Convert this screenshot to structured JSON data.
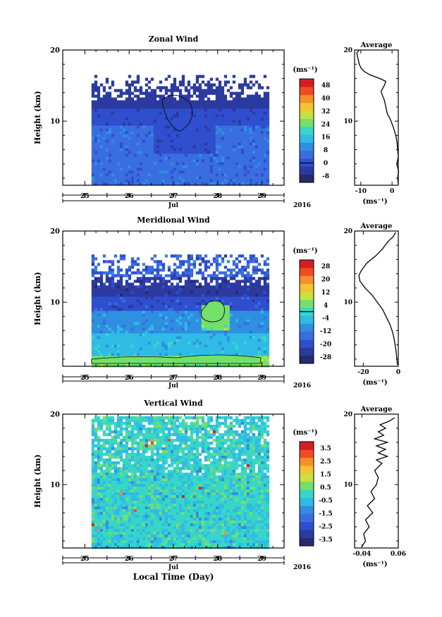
{
  "xlabel": "Local Time (Day)",
  "year": "2016",
  "month": "Jul",
  "colors": {
    "zonal": [
      "#262b6b",
      "#2c3aa0",
      "#2f4fce",
      "#3a6ee0",
      "#2f8fe0",
      "#2fbbe6",
      "#38d6c6",
      "#73e06a",
      "#c8e040",
      "#f2c431",
      "#f59029",
      "#f04c23",
      "#d41f21"
    ],
    "meridional": [
      "#262b6b",
      "#2c3aa0",
      "#2f4fce",
      "#3a6ee0",
      "#2f8fe0",
      "#2fbbe6",
      "#38d6c6",
      "#73e06a",
      "#c8e040",
      "#f2c431",
      "#f59029",
      "#f04c23",
      "#d41f21"
    ],
    "vertical": [
      "#262b6b",
      "#2c3aa0",
      "#2f4fce",
      "#3a6ee0",
      "#2f8fe0",
      "#2fbbe6",
      "#38d6c6",
      "#73e06a",
      "#c8e040",
      "#f2c431",
      "#f59029",
      "#f04c23",
      "#d41f21"
    ]
  },
  "chart_data": [
    {
      "type": "heatmap",
      "title": "Zonal Wind",
      "ylabel": "Height (km)",
      "xlabel": "",
      "xlim": [
        24.5,
        29.5
      ],
      "x_ticks": [
        "25",
        "26",
        "27",
        "28",
        "29"
      ],
      "ylim": [
        1,
        20
      ],
      "y_ticks": [
        10,
        20
      ],
      "data_xrange": [
        25.15,
        29.15
      ],
      "data_yrange": [
        1.2,
        16.5
      ],
      "colorbar_unit": "(ms⁻¹)",
      "colorbar_ticks": [
        "-8",
        "0",
        "8",
        "16",
        "24",
        "32",
        "40",
        "48"
      ],
      "colorbar_range": [
        -12,
        52
      ],
      "colorbar_zero": 0,
      "avg_panel": {
        "title": "Average",
        "xlabel": "(ms⁻¹)",
        "xlim": [
          -12,
          2
        ],
        "x_ticks": [
          "-10",
          "0"
        ],
        "x_tick_values": [
          -10,
          0
        ],
        "y_ticks": [
          10,
          20
        ],
        "profile": [
          [
            2.0,
            1.2
          ],
          [
            1.8,
            2
          ],
          [
            2.1,
            3
          ],
          [
            1.5,
            4
          ],
          [
            2.0,
            5
          ],
          [
            1.8,
            6
          ],
          [
            1.6,
            7
          ],
          [
            1.2,
            8
          ],
          [
            0.5,
            9
          ],
          [
            -0.3,
            10
          ],
          [
            -0.8,
            10.5
          ],
          [
            -1.5,
            11
          ],
          [
            -2.0,
            12
          ],
          [
            -2.5,
            13
          ],
          [
            -3.0,
            13.5
          ],
          [
            -3.5,
            14.2
          ],
          [
            -2.5,
            15
          ],
          [
            -2.0,
            15.6
          ],
          [
            -4,
            16
          ],
          [
            -7,
            16.5
          ],
          [
            -9,
            17
          ],
          [
            -10,
            17.5
          ],
          [
            -10.5,
            18
          ],
          [
            -11,
            19
          ],
          [
            -11.3,
            19.6
          ],
          [
            -10.5,
            20
          ]
        ]
      }
    },
    {
      "type": "heatmap",
      "title": "Meridional Wind",
      "ylabel": "Height (km)",
      "xlabel": "",
      "xlim": [
        24.5,
        29.5
      ],
      "x_ticks": [
        "25",
        "26",
        "27",
        "28",
        "29"
      ],
      "ylim": [
        1,
        20
      ],
      "y_ticks": [
        10,
        20
      ],
      "data_xrange": [
        25.15,
        29.15
      ],
      "data_yrange": [
        1.2,
        16.7
      ],
      "colorbar_unit": "(ms⁻¹)",
      "colorbar_ticks": [
        "-28",
        "-20",
        "-12",
        "-4",
        "4",
        "12",
        "20",
        "28"
      ],
      "colorbar_range": [
        -32,
        32
      ],
      "colorbar_zero": 0,
      "avg_panel": {
        "title": "Average",
        "xlabel": "(ms⁻¹)",
        "xlim": [
          -25,
          0
        ],
        "x_ticks": [
          "-20",
          "0"
        ],
        "x_tick_values": [
          -20,
          0
        ],
        "y_ticks": [
          10,
          20
        ],
        "profile": [
          [
            -0.5,
            1.2
          ],
          [
            -0.8,
            2
          ],
          [
            -1.2,
            3
          ],
          [
            -1.8,
            4
          ],
          [
            -2.5,
            5
          ],
          [
            -3.5,
            6
          ],
          [
            -5,
            7
          ],
          [
            -7,
            8
          ],
          [
            -9,
            9
          ],
          [
            -12,
            10
          ],
          [
            -15,
            11
          ],
          [
            -19,
            12
          ],
          [
            -22,
            13
          ],
          [
            -22.5,
            13.8
          ],
          [
            -21,
            14.5
          ],
          [
            -18,
            15.5
          ],
          [
            -13,
            16.5
          ],
          [
            -9,
            17.5
          ],
          [
            -6,
            18.5
          ],
          [
            -3,
            19.2
          ],
          [
            -1.5,
            19.8
          ]
        ]
      }
    },
    {
      "type": "heatmap",
      "title": "Vertical Wind",
      "ylabel": "Height (km)",
      "xlabel": "Local Time (Day)",
      "xlim": [
        24.5,
        29.5
      ],
      "x_ticks": [
        "25",
        "26",
        "27",
        "28",
        "29"
      ],
      "ylim": [
        1,
        20
      ],
      "y_ticks": [
        10,
        20
      ],
      "data_xrange": [
        25.15,
        29.15
      ],
      "data_yrange": [
        1.2,
        19.7
      ],
      "colorbar_unit": "(ms⁻¹)",
      "colorbar_ticks": [
        "-3.5",
        "-2.5",
        "-1.5",
        "-0.5",
        "0.5",
        "1.5",
        "2.5",
        "3.5"
      ],
      "colorbar_range": [
        -4,
        4
      ],
      "colorbar_zero": null,
      "avg_panel": {
        "title": "Average",
        "xlabel": "(ms⁻¹)",
        "xlim": [
          -0.06,
          0.06
        ],
        "x_ticks": [
          "-0.04",
          "0.06"
        ],
        "x_tick_values": [
          -0.04,
          0.06
        ],
        "y_ticks": [
          10,
          20
        ],
        "profile": [
          [
            -0.04,
            1.2
          ],
          [
            -0.03,
            2
          ],
          [
            -0.035,
            3
          ],
          [
            -0.02,
            4
          ],
          [
            -0.03,
            5
          ],
          [
            -0.01,
            6
          ],
          [
            -0.025,
            7
          ],
          [
            -0.005,
            8
          ],
          [
            -0.015,
            9
          ],
          [
            0.0,
            10
          ],
          [
            0.005,
            11
          ],
          [
            -0.005,
            12
          ],
          [
            0.015,
            13
          ],
          [
            0.0,
            13.5
          ],
          [
            0.03,
            14
          ],
          [
            0.005,
            14.5
          ],
          [
            0.025,
            15
          ],
          [
            0.0,
            15.5
          ],
          [
            0.03,
            16
          ],
          [
            -0.005,
            16.5
          ],
          [
            0.02,
            17
          ],
          [
            0.005,
            17.5
          ],
          [
            0.025,
            18
          ],
          [
            0.01,
            18.5
          ],
          [
            0.035,
            19
          ],
          [
            0.05,
            19.5
          ]
        ]
      }
    }
  ]
}
